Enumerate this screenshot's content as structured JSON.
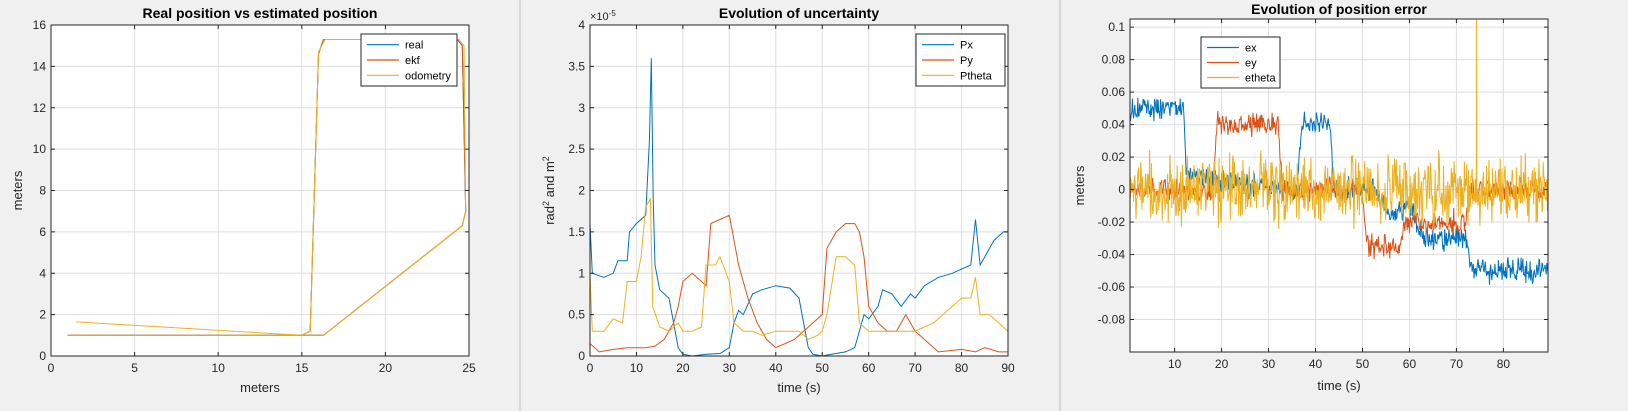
{
  "charts": [
    {
      "type": "line",
      "title": "Real position vs estimated position",
      "xlabel": "meters",
      "ylabel": "meters",
      "xlim": [
        0,
        25
      ],
      "ylim": [
        0,
        16
      ],
      "xticks": [
        0,
        5,
        10,
        15,
        20,
        25
      ],
      "yticks": [
        0,
        2,
        4,
        6,
        8,
        10,
        12,
        14,
        16
      ],
      "grid": true,
      "legend_position": "top-right",
      "series": [
        {
          "name": "real",
          "color": "#0072BD",
          "points": [
            [
              1,
              1
            ],
            [
              15,
              1
            ],
            [
              15.5,
              1.2
            ],
            [
              16,
              14.6
            ],
            [
              16.3,
              15.3
            ],
            [
              24.3,
              15.3
            ],
            [
              24.6,
              15
            ],
            [
              24.8,
              7
            ],
            [
              24.6,
              6.3
            ],
            [
              16.3,
              1
            ],
            [
              15,
              1
            ]
          ]
        },
        {
          "name": "ekf",
          "color": "#D95319",
          "points": [
            [
              1,
              1
            ],
            [
              15,
              1
            ],
            [
              15.5,
              1.2
            ],
            [
              16,
              14.6
            ],
            [
              16.3,
              15.3
            ],
            [
              24.3,
              15.3
            ],
            [
              24.6,
              15
            ],
            [
              24.8,
              7
            ],
            [
              24.6,
              6.3
            ],
            [
              16.3,
              1
            ],
            [
              15,
              1
            ]
          ]
        },
        {
          "name": "odometry",
          "color": "#EDB120",
          "points": [
            [
              1.5,
              1.65
            ],
            [
              15,
              1
            ],
            [
              15.5,
              1.2
            ],
            [
              16,
              14.7
            ],
            [
              16.4,
              15.3
            ],
            [
              24.4,
              15.3
            ],
            [
              24.7,
              15
            ],
            [
              24.8,
              7
            ],
            [
              24.6,
              6.3
            ],
            [
              16.3,
              1
            ],
            [
              1,
              1
            ]
          ]
        }
      ]
    },
    {
      "type": "line",
      "title": "Evolution of uncertainty",
      "xlabel": "time (s)",
      "ylabel": "rad² and m²",
      "ylabel_main": "rad",
      "ylabel_sup": "2",
      "ylabel_mid": " and m",
      "ylabel_sup2": "2",
      "exponent_label": "×10",
      "exponent_sup": "-5",
      "xlim": [
        0,
        90
      ],
      "ylim": [
        0,
        4
      ],
      "xticks": [
        0,
        10,
        20,
        30,
        40,
        50,
        60,
        70,
        80,
        90
      ],
      "yticks": [
        0,
        0.5,
        1,
        1.5,
        2,
        2.5,
        3,
        3.5,
        4
      ],
      "grid": true,
      "legend_position": "top-right",
      "series": [
        {
          "name": "Px",
          "color": "#0072BD",
          "points": [
            [
              0,
              1.6
            ],
            [
              0.5,
              1
            ],
            [
              3,
              0.95
            ],
            [
              5,
              1.0
            ],
            [
              6,
              1.15
            ],
            [
              8,
              1.15
            ],
            [
              8.5,
              1.5
            ],
            [
              10,
              1.6
            ],
            [
              12,
              1.7
            ],
            [
              12.8,
              2.6
            ],
            [
              13.2,
              3.6
            ],
            [
              13.6,
              1.9
            ],
            [
              14,
              1.1
            ],
            [
              15,
              0.8
            ],
            [
              17,
              0.7
            ],
            [
              18,
              0.4
            ],
            [
              19,
              0.1
            ],
            [
              20,
              0.02
            ],
            [
              22,
              0
            ],
            [
              25,
              0.02
            ],
            [
              28,
              0.03
            ],
            [
              30,
              0.1
            ],
            [
              31,
              0.4
            ],
            [
              32,
              0.55
            ],
            [
              33,
              0.5
            ],
            [
              35,
              0.75
            ],
            [
              37,
              0.8
            ],
            [
              40,
              0.85
            ],
            [
              43,
              0.82
            ],
            [
              45,
              0.7
            ],
            [
              46,
              0.4
            ],
            [
              47,
              0.1
            ],
            [
              48,
              0.02
            ],
            [
              50,
              0
            ],
            [
              52,
              0.02
            ],
            [
              55,
              0.05
            ],
            [
              57,
              0.1
            ],
            [
              58,
              0.3
            ],
            [
              59,
              0.5
            ],
            [
              60,
              0.45
            ],
            [
              62,
              0.6
            ],
            [
              63,
              0.8
            ],
            [
              65,
              0.75
            ],
            [
              67,
              0.6
            ],
            [
              69,
              0.75
            ],
            [
              70,
              0.7
            ],
            [
              72,
              0.85
            ],
            [
              75,
              0.95
            ],
            [
              78,
              1.0
            ],
            [
              80,
              1.05
            ],
            [
              82,
              1.1
            ],
            [
              83,
              1.65
            ],
            [
              84,
              1.1
            ],
            [
              85,
              1.2
            ],
            [
              87,
              1.4
            ],
            [
              89,
              1.5
            ],
            [
              90,
              1.5
            ]
          ]
        },
        {
          "name": "Py",
          "color": "#D95319",
          "points": [
            [
              0,
              0.15
            ],
            [
              2,
              0.05
            ],
            [
              5,
              0.08
            ],
            [
              8,
              0.1
            ],
            [
              10,
              0.1
            ],
            [
              12,
              0.1
            ],
            [
              14,
              0.12
            ],
            [
              16,
              0.2
            ],
            [
              18,
              0.4
            ],
            [
              19,
              0.6
            ],
            [
              20,
              0.9
            ],
            [
              22,
              1.0
            ],
            [
              24,
              0.9
            ],
            [
              25,
              0.85
            ],
            [
              26,
              1.6
            ],
            [
              28,
              1.65
            ],
            [
              30,
              1.7
            ],
            [
              31,
              1.4
            ],
            [
              32,
              1.1
            ],
            [
              34,
              0.7
            ],
            [
              36,
              0.4
            ],
            [
              38,
              0.2
            ],
            [
              40,
              0.1
            ],
            [
              42,
              0.15
            ],
            [
              44,
              0.2
            ],
            [
              46,
              0.3
            ],
            [
              48,
              0.4
            ],
            [
              50,
              0.5
            ],
            [
              51,
              1.3
            ],
            [
              53,
              1.5
            ],
            [
              55,
              1.6
            ],
            [
              57,
              1.6
            ],
            [
              58,
              1.5
            ],
            [
              59,
              1.2
            ],
            [
              60,
              0.6
            ],
            [
              62,
              0.4
            ],
            [
              64,
              0.3
            ],
            [
              66,
              0.3
            ],
            [
              68,
              0.5
            ],
            [
              70,
              0.3
            ],
            [
              72,
              0.2
            ],
            [
              75,
              0.05
            ],
            [
              80,
              0.08
            ],
            [
              83,
              0.05
            ],
            [
              85,
              0.1
            ],
            [
              88,
              0.05
            ],
            [
              90,
              0.05
            ]
          ]
        },
        {
          "name": "Ptheta",
          "color": "#EDB120",
          "points": [
            [
              0,
              1
            ],
            [
              0.5,
              0.3
            ],
            [
              3,
              0.3
            ],
            [
              5,
              0.45
            ],
            [
              7,
              0.4
            ],
            [
              8,
              0.9
            ],
            [
              10,
              0.9
            ],
            [
              11,
              1.2
            ],
            [
              12,
              1.8
            ],
            [
              13,
              1.9
            ],
            [
              13.5,
              0.6
            ],
            [
              15,
              0.35
            ],
            [
              17,
              0.3
            ],
            [
              19,
              0.4
            ],
            [
              20,
              0.3
            ],
            [
              22,
              0.3
            ],
            [
              24,
              0.35
            ],
            [
              25,
              1.1
            ],
            [
              27,
              1.1
            ],
            [
              28,
              1.2
            ],
            [
              30,
              0.9
            ],
            [
              31,
              0.4
            ],
            [
              33,
              0.3
            ],
            [
              35,
              0.3
            ],
            [
              37,
              0.25
            ],
            [
              40,
              0.3
            ],
            [
              42,
              0.3
            ],
            [
              44,
              0.3
            ],
            [
              45,
              0.3
            ],
            [
              47,
              0.2
            ],
            [
              49,
              0.25
            ],
            [
              50,
              0.3
            ],
            [
              51,
              0.5
            ],
            [
              53,
              1.2
            ],
            [
              55,
              1.2
            ],
            [
              57,
              1.1
            ],
            [
              58,
              0.4
            ],
            [
              60,
              0.3
            ],
            [
              62,
              0.3
            ],
            [
              64,
              0.3
            ],
            [
              66,
              0.3
            ],
            [
              68,
              0.3
            ],
            [
              70,
              0.3
            ],
            [
              72,
              0.35
            ],
            [
              74,
              0.4
            ],
            [
              76,
              0.5
            ],
            [
              78,
              0.6
            ],
            [
              80,
              0.7
            ],
            [
              82,
              0.7
            ],
            [
              83,
              0.95
            ],
            [
              84,
              0.5
            ],
            [
              86,
              0.5
            ],
            [
              88,
              0.4
            ],
            [
              90,
              0.3
            ]
          ]
        }
      ]
    },
    {
      "type": "line",
      "title": "Evolution of position error",
      "xlabel": "time (s)",
      "ylabel": "meters",
      "xlim": [
        0.5,
        89.5
      ],
      "ylim": [
        -0.1,
        0.105
      ],
      "xticks": [
        10,
        20,
        30,
        40,
        50,
        60,
        70,
        80
      ],
      "yticks": [
        -0.08,
        -0.06,
        -0.04,
        -0.02,
        0,
        0.02,
        0.04,
        0.06,
        0.08,
        0.1
      ],
      "grid": true,
      "legend_position": "top-left",
      "series": [
        {
          "name": "ex",
          "color": "#0072BD",
          "base": [
            [
              0.5,
              0.05
            ],
            [
              12,
              0.05
            ],
            [
              12.5,
              0.01
            ],
            [
              20,
              0.005
            ],
            [
              30,
              0.0
            ],
            [
              36,
              0.0
            ],
            [
              37,
              0.04
            ],
            [
              43,
              0.04
            ],
            [
              44,
              0.0
            ],
            [
              52,
              0.0
            ],
            [
              56,
              -0.015
            ],
            [
              60,
              -0.01
            ],
            [
              63,
              -0.03
            ],
            [
              72,
              -0.03
            ],
            [
              73,
              -0.05
            ],
            [
              89,
              -0.05
            ]
          ],
          "noise": 0.006
        },
        {
          "name": "ey",
          "color": "#D95319",
          "base": [
            [
              0.5,
              0.0
            ],
            [
              18,
              0.0
            ],
            [
              19,
              0.04
            ],
            [
              32,
              0.04
            ],
            [
              33,
              0.0
            ],
            [
              50,
              0.0
            ],
            [
              51,
              -0.035
            ],
            [
              58,
              -0.035
            ],
            [
              59,
              -0.02
            ],
            [
              72,
              -0.02
            ],
            [
              73,
              0.0
            ],
            [
              89,
              0.0
            ]
          ],
          "noise": 0.006
        },
        {
          "name": "etheta",
          "color": "#EDB120",
          "base": [
            [
              0.5,
              0.0
            ],
            [
              89,
              0.0
            ]
          ],
          "noise": 0.018,
          "spikes": [
            [
              74.3,
              0.105
            ]
          ]
        }
      ]
    }
  ]
}
